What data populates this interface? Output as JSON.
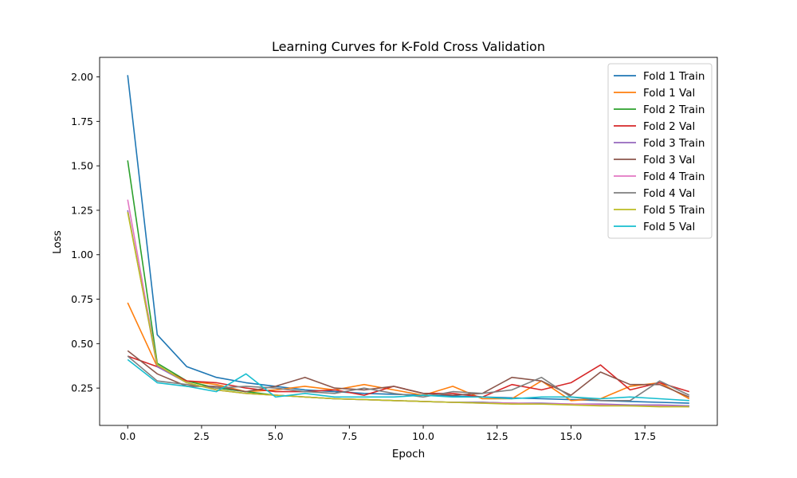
{
  "chart_data": {
    "type": "line",
    "title": "Learning Curves for K-Fold Cross Validation",
    "xlabel": "Epoch",
    "ylabel": "Loss",
    "xlim": [
      -0.95,
      19.95
    ],
    "ylim": [
      0.04,
      2.11
    ],
    "xticks": [
      0.0,
      2.5,
      5.0,
      7.5,
      10.0,
      12.5,
      15.0,
      17.5
    ],
    "xtick_labels": [
      "0.0",
      "2.5",
      "5.0",
      "7.5",
      "10.0",
      "12.5",
      "15.0",
      "17.5"
    ],
    "yticks": [
      0.25,
      0.5,
      0.75,
      1.0,
      1.25,
      1.5,
      1.75,
      2.0
    ],
    "ytick_labels": [
      "0.25",
      "0.50",
      "0.75",
      "1.00",
      "1.25",
      "1.50",
      "1.75",
      "2.00"
    ],
    "grid": false,
    "legend_position": "top-right",
    "x": [
      0,
      1,
      2,
      3,
      4,
      5,
      6,
      7,
      8,
      9,
      10,
      11,
      12,
      13,
      14,
      15,
      16,
      17,
      18,
      19
    ],
    "series": [
      {
        "name": "Fold 1 Train",
        "color": "#1f77b4",
        "values": [
          2.01,
          0.55,
          0.37,
          0.31,
          0.28,
          0.26,
          0.24,
          0.23,
          0.22,
          0.215,
          0.21,
          0.205,
          0.2,
          0.195,
          0.19,
          0.185,
          0.18,
          0.175,
          0.17,
          0.165
        ]
      },
      {
        "name": "Fold 1 Val",
        "color": "#ff7f0e",
        "values": [
          0.73,
          0.37,
          0.29,
          0.27,
          0.23,
          0.24,
          0.26,
          0.24,
          0.27,
          0.24,
          0.21,
          0.26,
          0.19,
          0.19,
          0.29,
          0.18,
          0.19,
          0.26,
          0.28,
          0.19
        ]
      },
      {
        "name": "Fold 2 Train",
        "color": "#2ca02c",
        "values": [
          1.53,
          0.39,
          0.29,
          0.25,
          0.23,
          0.21,
          0.2,
          0.19,
          0.185,
          0.18,
          0.175,
          0.17,
          0.17,
          0.165,
          0.16,
          0.16,
          0.155,
          0.155,
          0.15,
          0.15
        ]
      },
      {
        "name": "Fold 2 Val",
        "color": "#d62728",
        "values": [
          0.43,
          0.37,
          0.29,
          0.28,
          0.25,
          0.23,
          0.23,
          0.24,
          0.21,
          0.26,
          0.22,
          0.22,
          0.2,
          0.27,
          0.24,
          0.28,
          0.38,
          0.24,
          0.28,
          0.23
        ]
      },
      {
        "name": "Fold 3 Train",
        "color": "#9467bd",
        "values": [
          1.25,
          0.37,
          0.28,
          0.24,
          0.22,
          0.21,
          0.2,
          0.19,
          0.185,
          0.18,
          0.175,
          0.17,
          0.17,
          0.165,
          0.165,
          0.16,
          0.16,
          0.155,
          0.155,
          0.15
        ]
      },
      {
        "name": "Fold 3 Val",
        "color": "#8c564b",
        "values": [
          0.46,
          0.33,
          0.26,
          0.26,
          0.23,
          0.26,
          0.31,
          0.25,
          0.24,
          0.26,
          0.22,
          0.21,
          0.22,
          0.31,
          0.29,
          0.21,
          0.34,
          0.27,
          0.27,
          0.2
        ]
      },
      {
        "name": "Fold 4 Train",
        "color": "#e377c2",
        "values": [
          1.31,
          0.38,
          0.28,
          0.24,
          0.22,
          0.21,
          0.2,
          0.19,
          0.185,
          0.18,
          0.175,
          0.17,
          0.165,
          0.165,
          0.16,
          0.16,
          0.155,
          0.15,
          0.15,
          0.145
        ]
      },
      {
        "name": "Fold 4 Val",
        "color": "#7f7f7f",
        "values": [
          0.43,
          0.29,
          0.27,
          0.25,
          0.26,
          0.25,
          0.23,
          0.22,
          0.25,
          0.22,
          0.2,
          0.23,
          0.22,
          0.24,
          0.31,
          0.2,
          0.18,
          0.18,
          0.29,
          0.21
        ]
      },
      {
        "name": "Fold 5 Train",
        "color": "#bcbd22",
        "values": [
          1.24,
          0.38,
          0.28,
          0.24,
          0.22,
          0.21,
          0.2,
          0.19,
          0.185,
          0.18,
          0.175,
          0.17,
          0.165,
          0.16,
          0.16,
          0.155,
          0.15,
          0.15,
          0.145,
          0.145
        ]
      },
      {
        "name": "Fold 5 Val",
        "color": "#17becf",
        "values": [
          0.41,
          0.28,
          0.26,
          0.23,
          0.33,
          0.2,
          0.22,
          0.2,
          0.2,
          0.2,
          0.21,
          0.2,
          0.2,
          0.19,
          0.2,
          0.2,
          0.19,
          0.2,
          0.19,
          0.18
        ]
      }
    ]
  }
}
